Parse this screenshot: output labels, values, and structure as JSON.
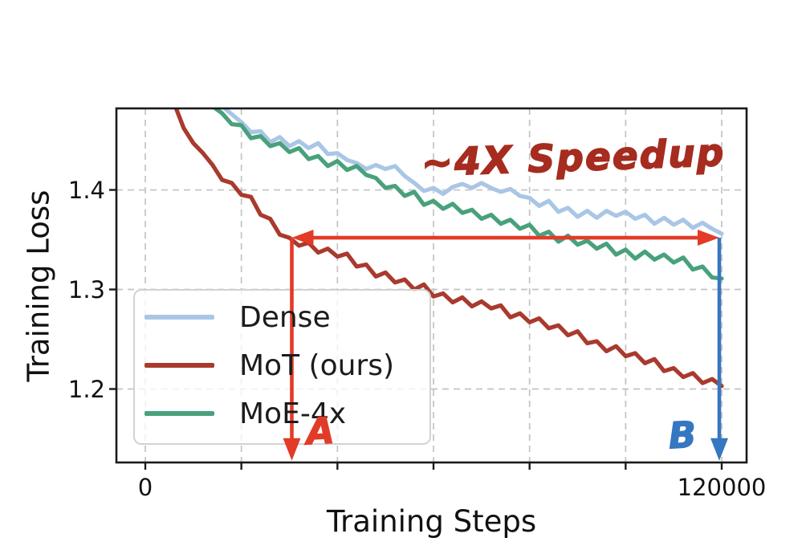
{
  "chart_data": {
    "type": "line",
    "title": "",
    "xlabel": "Training Steps",
    "ylabel": "Training Loss",
    "xlim": [
      -6017,
      125181
    ],
    "ylim": [
      1.1262,
      1.4819
    ],
    "x_ticks": [
      0,
      20000,
      40000,
      60000,
      80000,
      100000,
      120000
    ],
    "x_tick_text": [
      "0",
      "120000"
    ],
    "x_tick_text_values": [
      0,
      120000
    ],
    "y_ticks": [
      1.2,
      1.3,
      1.4
    ],
    "y_tick_text": [
      "1.2",
      "1.3",
      "1.4"
    ],
    "grid": true,
    "grid_color": "#c3c3c3",
    "spine_color": "#1a1a1a",
    "legend_position": "lower-left",
    "series": [
      {
        "name": "Dense",
        "color": "#aac6e6",
        "points": [
          [
            16000,
            1.484
          ],
          [
            18000,
            1.476
          ],
          [
            20000,
            1.468
          ],
          [
            22000,
            1.458
          ],
          [
            24000,
            1.459
          ],
          [
            26000,
            1.448
          ],
          [
            28000,
            1.453
          ],
          [
            30000,
            1.444
          ],
          [
            32000,
            1.449
          ],
          [
            34000,
            1.442
          ],
          [
            36000,
            1.447
          ],
          [
            38000,
            1.436
          ],
          [
            40000,
            1.437
          ],
          [
            42000,
            1.43
          ],
          [
            44000,
            1.427
          ],
          [
            46000,
            1.421
          ],
          [
            48000,
            1.425
          ],
          [
            50000,
            1.421
          ],
          [
            52000,
            1.424
          ],
          [
            54000,
            1.414
          ],
          [
            56000,
            1.407
          ],
          [
            58000,
            1.399
          ],
          [
            60000,
            1.402
          ],
          [
            62000,
            1.396
          ],
          [
            64000,
            1.403
          ],
          [
            66000,
            1.406
          ],
          [
            68000,
            1.402
          ],
          [
            70000,
            1.407
          ],
          [
            72000,
            1.402
          ],
          [
            74000,
            1.398
          ],
          [
            76000,
            1.401
          ],
          [
            78000,
            1.394
          ],
          [
            80000,
            1.392
          ],
          [
            82000,
            1.384
          ],
          [
            84000,
            1.389
          ],
          [
            86000,
            1.378
          ],
          [
            88000,
            1.382
          ],
          [
            90000,
            1.373
          ],
          [
            92000,
            1.379
          ],
          [
            94000,
            1.372
          ],
          [
            96000,
            1.379
          ],
          [
            98000,
            1.374
          ],
          [
            100000,
            1.378
          ],
          [
            102000,
            1.371
          ],
          [
            104000,
            1.375
          ],
          [
            106000,
            1.366
          ],
          [
            108000,
            1.372
          ],
          [
            110000,
            1.365
          ],
          [
            112000,
            1.37
          ],
          [
            114000,
            1.362
          ],
          [
            116000,
            1.367
          ],
          [
            118000,
            1.361
          ],
          [
            120000,
            1.356
          ]
        ]
      },
      {
        "name": "MoT (ours)",
        "color": "#a93a2e",
        "points": [
          [
            6000,
            1.487
          ],
          [
            8000,
            1.462
          ],
          [
            10000,
            1.447
          ],
          [
            12000,
            1.437
          ],
          [
            14000,
            1.425
          ],
          [
            16000,
            1.41
          ],
          [
            18000,
            1.407
          ],
          [
            20000,
            1.395
          ],
          [
            22000,
            1.393
          ],
          [
            24000,
            1.375
          ],
          [
            26000,
            1.371
          ],
          [
            28000,
            1.355
          ],
          [
            30000,
            1.352
          ],
          [
            32000,
            1.344
          ],
          [
            34000,
            1.347
          ],
          [
            36000,
            1.337
          ],
          [
            38000,
            1.341
          ],
          [
            40000,
            1.333
          ],
          [
            42000,
            1.336
          ],
          [
            44000,
            1.323
          ],
          [
            46000,
            1.325
          ],
          [
            48000,
            1.313
          ],
          [
            50000,
            1.317
          ],
          [
            52000,
            1.307
          ],
          [
            54000,
            1.31
          ],
          [
            56000,
            1.3
          ],
          [
            58000,
            1.305
          ],
          [
            60000,
            1.293
          ],
          [
            62000,
            1.296
          ],
          [
            64000,
            1.287
          ],
          [
            66000,
            1.292
          ],
          [
            68000,
            1.283
          ],
          [
            70000,
            1.288
          ],
          [
            72000,
            1.281
          ],
          [
            74000,
            1.284
          ],
          [
            76000,
            1.272
          ],
          [
            78000,
            1.276
          ],
          [
            80000,
            1.267
          ],
          [
            82000,
            1.271
          ],
          [
            84000,
            1.261
          ],
          [
            86000,
            1.264
          ],
          [
            88000,
            1.254
          ],
          [
            90000,
            1.258
          ],
          [
            92000,
            1.246
          ],
          [
            94000,
            1.248
          ],
          [
            96000,
            1.238
          ],
          [
            98000,
            1.243
          ],
          [
            100000,
            1.233
          ],
          [
            102000,
            1.236
          ],
          [
            104000,
            1.226
          ],
          [
            106000,
            1.23
          ],
          [
            108000,
            1.218
          ],
          [
            110000,
            1.221
          ],
          [
            112000,
            1.212
          ],
          [
            114000,
            1.216
          ],
          [
            116000,
            1.206
          ],
          [
            118000,
            1.21
          ],
          [
            120000,
            1.203
          ]
        ]
      },
      {
        "name": "MoE-4x",
        "color": "#49a17c",
        "points": [
          [
            14000,
            1.484
          ],
          [
            16000,
            1.477
          ],
          [
            18000,
            1.466
          ],
          [
            20000,
            1.465
          ],
          [
            22000,
            1.452
          ],
          [
            24000,
            1.454
          ],
          [
            26000,
            1.444
          ],
          [
            28000,
            1.447
          ],
          [
            30000,
            1.438
          ],
          [
            32000,
            1.442
          ],
          [
            34000,
            1.431
          ],
          [
            36000,
            1.434
          ],
          [
            38000,
            1.424
          ],
          [
            40000,
            1.429
          ],
          [
            42000,
            1.42
          ],
          [
            44000,
            1.424
          ],
          [
            46000,
            1.415
          ],
          [
            48000,
            1.412
          ],
          [
            50000,
            1.402
          ],
          [
            52000,
            1.404
          ],
          [
            54000,
            1.394
          ],
          [
            56000,
            1.398
          ],
          [
            58000,
            1.385
          ],
          [
            60000,
            1.389
          ],
          [
            62000,
            1.381
          ],
          [
            64000,
            1.386
          ],
          [
            66000,
            1.377
          ],
          [
            68000,
            1.38
          ],
          [
            70000,
            1.371
          ],
          [
            72000,
            1.375
          ],
          [
            74000,
            1.366
          ],
          [
            76000,
            1.37
          ],
          [
            78000,
            1.361
          ],
          [
            80000,
            1.365
          ],
          [
            82000,
            1.354
          ],
          [
            84000,
            1.358
          ],
          [
            86000,
            1.348
          ],
          [
            88000,
            1.354
          ],
          [
            90000,
            1.345
          ],
          [
            92000,
            1.349
          ],
          [
            94000,
            1.341
          ],
          [
            96000,
            1.346
          ],
          [
            98000,
            1.335
          ],
          [
            100000,
            1.34
          ],
          [
            102000,
            1.331
          ],
          [
            104000,
            1.338
          ],
          [
            106000,
            1.33
          ],
          [
            108000,
            1.335
          ],
          [
            110000,
            1.327
          ],
          [
            112000,
            1.332
          ],
          [
            114000,
            1.32
          ],
          [
            116000,
            1.323
          ],
          [
            118000,
            1.312
          ],
          [
            120000,
            1.311
          ]
        ]
      }
    ],
    "annotations": {
      "speedup_text": {
        "text": "~4X Speedup",
        "color": "#a62c1f",
        "step": 89000,
        "loss": 1.432
      },
      "h_arrow": {
        "from_step": 30500,
        "to_step": 119500,
        "loss": 1.352,
        "color": "#e23b28"
      },
      "a_arrow": {
        "step": 30500,
        "from_loss": 1.352,
        "to_loss": 1.128,
        "color": "#e23b28"
      },
      "b_arrow": {
        "step": 119500,
        "from_loss": 1.352,
        "to_loss": 1.128,
        "color": "#3577c0"
      },
      "a_label": {
        "text": "A",
        "color": "#e23b28",
        "step": 36500,
        "loss": 1.158
      },
      "b_label": {
        "text": "B",
        "color": "#3577c0",
        "step": 111800,
        "loss": 1.154
      }
    }
  }
}
